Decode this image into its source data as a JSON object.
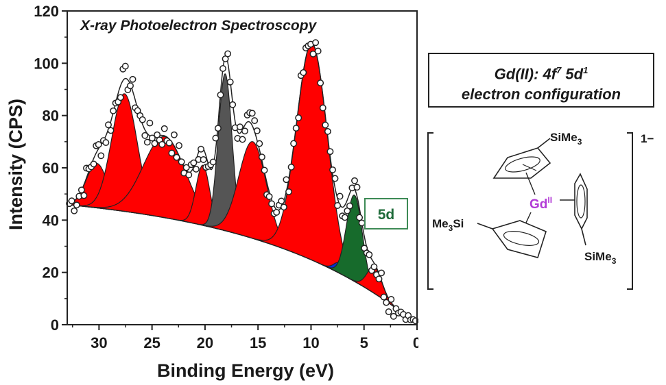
{
  "chart_data": {
    "type": "area",
    "title": "X-ray Photoelectron Spectroscopy",
    "xlabel": "Binding Energy (eV)",
    "ylabel": "Intensity (CPS)",
    "xlim": [
      33,
      0
    ],
    "ylim": [
      0,
      120
    ],
    "x_ticks": [
      "30",
      "25",
      "20",
      "15",
      "10",
      "5",
      "0"
    ],
    "y_ticks": [
      "0",
      "20",
      "40",
      "60",
      "80",
      "100",
      "120"
    ],
    "grid": false,
    "background": {
      "a": 52,
      "k": 0.065
    },
    "peaks": [
      {
        "center": 30.2,
        "height": 17,
        "width": 1.0,
        "color": "#ff0000"
      },
      {
        "center": 27.6,
        "height": 45,
        "width": 1.2,
        "color": "#ff0000"
      },
      {
        "center": 23.8,
        "height": 31,
        "width": 2.0,
        "color": "#ff0000"
      },
      {
        "center": 20.2,
        "height": 23,
        "width": 0.65,
        "color": "#ff0000"
      },
      {
        "center": 18.1,
        "height": 60,
        "width": 0.65,
        "color": "#555555"
      },
      {
        "center": 16.3,
        "height": 10,
        "width": 0.75,
        "color": "#0a2fd0"
      },
      {
        "center": 15.5,
        "height": 37,
        "width": 1.3,
        "color": "#ff0000"
      },
      {
        "center": 9.9,
        "height": 83,
        "width": 1.45,
        "color": "#ff0000"
      },
      {
        "center": 7.3,
        "height": 4,
        "width": 0.55,
        "color": "#0a2fd0"
      },
      {
        "center": 5.9,
        "height": 33,
        "width": 0.75,
        "color": "#176b2c"
      },
      {
        "center": 4.0,
        "height": 10,
        "width": 0.7,
        "color": "#ff0000"
      }
    ],
    "scatter_noise_amplitude": 5,
    "annotations": [
      "5d"
    ],
    "colors": {
      "red": "#ff0000",
      "grey": "#555555",
      "blue": "#0a2fd0",
      "green": "#176b2c",
      "outline": "#222222"
    }
  },
  "info_box": {
    "line1_prefix": "Gd(II): 4f",
    "line1_sup1": "7",
    "line1_mid": " 5d",
    "line1_sup2": "1",
    "line2": "electron configuration"
  },
  "molecule": {
    "charge": "1−",
    "metal": "Gd",
    "metal_ox": "II",
    "substituent_top": "SiMe",
    "substituent_left": "Me",
    "substituent_left_suffix": "Si",
    "substituent_right": "SiMe",
    "subscript": "3"
  }
}
